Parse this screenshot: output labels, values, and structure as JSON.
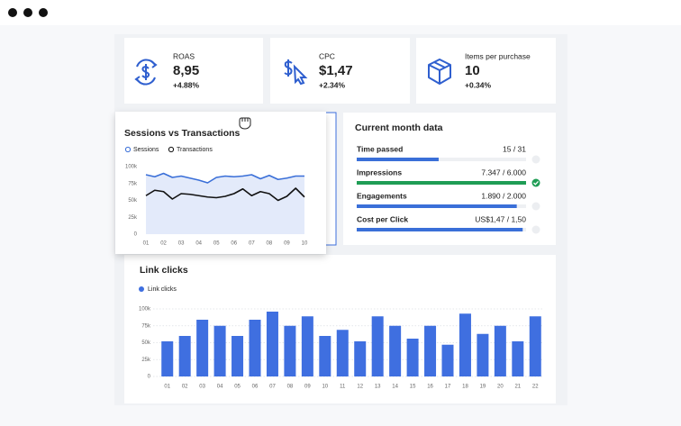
{
  "kpis": [
    {
      "label": "ROAS",
      "value": "8,95",
      "change": "+4.88%"
    },
    {
      "label": "CPC",
      "value": "$1,47",
      "change": "+2.34%"
    },
    {
      "label": "Items per purchase",
      "value": "10",
      "change": "+0.34%"
    }
  ],
  "sessions_chart": {
    "type": "line",
    "title": "Sessions vs Transactions",
    "categories": [
      "01",
      null,
      "02",
      null,
      "03",
      null,
      "04",
      null,
      "05",
      null,
      "06",
      null,
      "07",
      null,
      "08",
      null,
      "09",
      null,
      "10"
    ],
    "series": [
      {
        "name": "Sessions",
        "color": "#3a6fd8",
        "values": [
          88,
          85,
          90,
          84,
          86,
          83,
          80,
          76,
          84,
          86,
          85,
          86,
          88,
          82,
          87,
          81,
          83,
          86,
          86
        ]
      },
      {
        "name": "Transactions",
        "color": "#111111",
        "values": [
          57,
          65,
          63,
          52,
          60,
          59,
          57,
          55,
          54,
          56,
          60,
          67,
          57,
          63,
          60,
          50,
          56,
          68,
          55
        ]
      }
    ],
    "ylim": [
      0,
      100
    ],
    "yticks": [
      0,
      {
        "value": 25,
        "label": "25k"
      },
      {
        "value": 50,
        "label": "50k"
      },
      {
        "value": 75,
        "label": "75k"
      },
      {
        "value": 100,
        "label": "100k"
      }
    ]
  },
  "current_month": {
    "title": "Current month data",
    "rows": [
      {
        "label": "Time passed",
        "value": 15,
        "max": 31,
        "value_label": "15 / 31",
        "color": "#3a6fd8"
      },
      {
        "label": "Impressions",
        "value": 7347,
        "max": 6000,
        "value_label": "7.347 / 6.000",
        "color": "#1f9d55"
      },
      {
        "label": "Engagements",
        "value": 1890,
        "max": 2000,
        "value_label": "1.890 / 2.000",
        "color": "#3a6fd8"
      },
      {
        "label": "Cost per Click",
        "value": 1.47,
        "max": 1.5,
        "value_label": "US$1,47 / 1,50",
        "color": "#3a6fd8"
      }
    ]
  },
  "link_clicks": {
    "type": "bar",
    "title": "Link clicks",
    "categories": [
      "01",
      "02",
      "03",
      "04",
      "05",
      "06",
      "07",
      "08",
      "09",
      "10",
      "11",
      "12",
      "13",
      "14",
      "15",
      "16",
      "17",
      "18",
      "19",
      "20",
      "21",
      "22"
    ],
    "series": [
      {
        "name": "Link clicks",
        "color": "#3f6fe0",
        "values": [
          52,
          60,
          84,
          75,
          60,
          84,
          96,
          75,
          89,
          60,
          69,
          52,
          89,
          75,
          56,
          75,
          47,
          93,
          63,
          75,
          52,
          89
        ]
      }
    ],
    "ylim": [
      0,
      100
    ],
    "yticks": [
      0,
      {
        "value": 25,
        "label": "25k"
      },
      {
        "value": 50,
        "label": "50k"
      },
      {
        "value": 75,
        "label": "75k"
      },
      {
        "value": 100,
        "label": "100k"
      }
    ],
    "grid": true
  }
}
